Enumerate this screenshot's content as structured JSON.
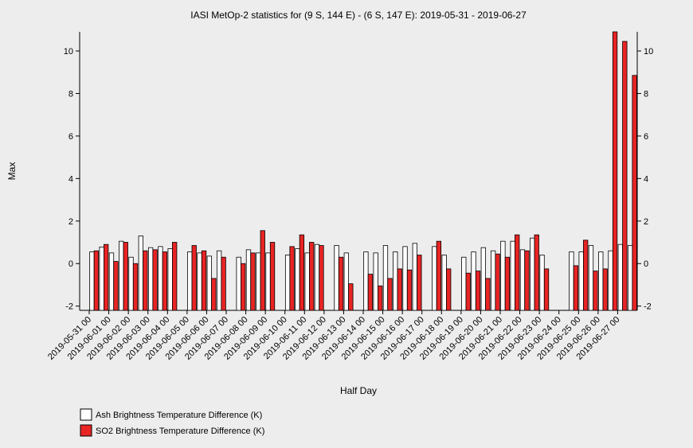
{
  "chart_data": {
    "type": "bar",
    "title": "IASI MetOp-2 statistics for (9 S, 144 E) - (6 S, 147 E): 2019-05-31 - 2019-06-27",
    "x_label": "Half Day",
    "y_label": "Max",
    "categories": [
      "2019-05-31 00",
      null,
      "2019-06-01 00",
      null,
      "2019-06-02 00",
      null,
      "2019-06-03 00",
      null,
      "2019-06-04 00",
      null,
      "2019-06-05 00",
      null,
      "2019-06-06 00",
      null,
      "2019-06-07 00",
      null,
      "2019-06-08 00",
      null,
      "2019-06-09 00",
      null,
      "2019-06-10 00",
      null,
      "2019-06-11 00",
      null,
      "2019-06-12 00",
      null,
      "2019-06-13 00",
      null,
      "2019-06-14 00",
      null,
      "2019-06-15 00",
      null,
      "2019-06-16 00",
      null,
      "2019-06-17 00",
      null,
      "2019-06-18 00",
      null,
      "2019-06-19 00",
      null,
      "2019-06-20 00",
      null,
      "2019-06-21 00",
      null,
      "2019-06-22 00",
      null,
      "2019-06-23 00",
      null,
      "2019-06-24 00",
      null,
      "2019-06-25 00",
      null,
      "2019-06-26 00",
      null,
      "2019-06-27 00",
      null
    ],
    "series": [
      {
        "name": "Ash Brightness Temperature Difference (K)",
        "color": "#ffffff",
        "values": [
          0.55,
          0.78,
          0.5,
          1.05,
          0.3,
          1.3,
          0.75,
          0.8,
          0.7,
          null,
          0.55,
          0.5,
          0.35,
          0.6,
          null,
          0.3,
          0.65,
          0.5,
          0.5,
          null,
          0.4,
          0.7,
          0.5,
          0.9,
          null,
          0.85,
          0.5,
          null,
          0.55,
          0.5,
          0.85,
          0.55,
          0.8,
          0.95,
          null,
          0.8,
          0.4,
          null,
          0.3,
          0.55,
          0.75,
          0.6,
          1.05,
          1.05,
          0.65,
          1.2,
          0.4,
          null,
          null,
          0.55,
          0.55,
          0.85,
          0.55,
          0.6,
          0.9,
          0.85
        ]
      },
      {
        "name": "SO2 Brightness Temperature Difference (K)",
        "color": "#e82424",
        "values": [
          0.6,
          0.9,
          0.1,
          1.0,
          0.0,
          0.6,
          0.65,
          0.55,
          1.0,
          null,
          0.85,
          0.6,
          -0.7,
          0.3,
          null,
          0.0,
          0.5,
          1.55,
          1.0,
          null,
          0.8,
          1.35,
          1.0,
          0.85,
          null,
          0.3,
          -0.95,
          null,
          -0.5,
          -1.05,
          -0.7,
          -0.25,
          -0.3,
          0.4,
          null,
          1.05,
          -0.25,
          null,
          -0.45,
          -0.35,
          -0.7,
          0.45,
          0.3,
          1.35,
          0.6,
          1.35,
          -0.25,
          null,
          null,
          -0.1,
          1.1,
          -0.35,
          -0.25,
          10.9,
          10.45,
          8.85
        ]
      }
    ],
    "ylim": [
      -2.2,
      10.9
    ],
    "yticks": [
      -2,
      0,
      2,
      4,
      6,
      8,
      10
    ]
  }
}
